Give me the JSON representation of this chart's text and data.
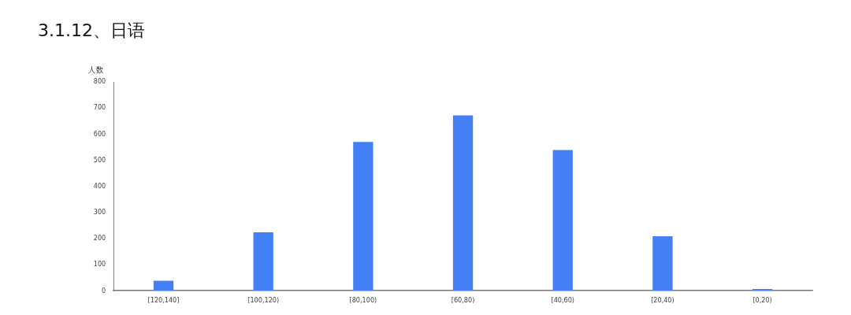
{
  "chart_data": {
    "type": "bar",
    "title": "3.1.12、日语",
    "ylabel": "人数",
    "categories": [
      "[120,140]",
      "[100,120)",
      "[80,100)",
      "[60,80)",
      "[40,60)",
      "[20,40)",
      "[0,20)"
    ],
    "values": [
      38,
      224,
      570,
      672,
      539,
      209,
      7
    ],
    "color": "#4480f5",
    "ylim": [
      0,
      800
    ],
    "yticks": [
      0,
      100,
      200,
      300,
      400,
      500,
      600,
      700,
      800
    ],
    "grid": false,
    "legend": false
  }
}
